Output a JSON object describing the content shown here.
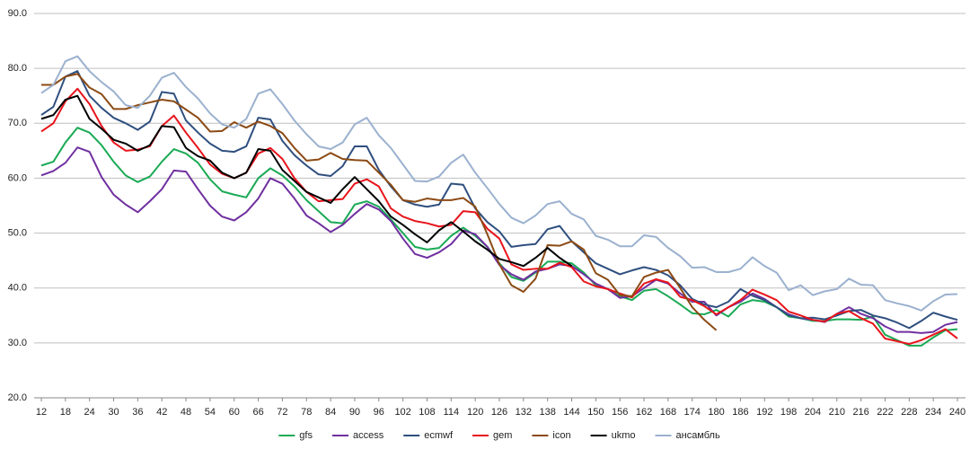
{
  "chart_data": {
    "type": "line",
    "x": [
      12,
      15,
      18,
      21,
      24,
      27,
      30,
      33,
      36,
      39,
      42,
      45,
      48,
      51,
      54,
      57,
      60,
      63,
      66,
      69,
      72,
      75,
      78,
      81,
      84,
      87,
      90,
      93,
      96,
      99,
      102,
      105,
      108,
      111,
      114,
      117,
      120,
      123,
      126,
      129,
      132,
      135,
      138,
      141,
      144,
      147,
      150,
      153,
      156,
      159,
      162,
      165,
      168,
      171,
      174,
      177,
      180,
      183,
      186,
      189,
      192,
      195,
      198,
      201,
      204,
      207,
      210,
      213,
      216,
      219,
      222,
      225,
      228,
      231,
      234,
      237,
      240
    ],
    "xlim": [
      12,
      240
    ],
    "xticks": [
      12,
      18,
      24,
      30,
      36,
      42,
      48,
      54,
      60,
      66,
      72,
      78,
      84,
      90,
      96,
      102,
      108,
      114,
      120,
      126,
      132,
      138,
      144,
      150,
      156,
      162,
      168,
      174,
      180,
      186,
      192,
      198,
      204,
      210,
      216,
      222,
      228,
      234,
      240
    ],
    "ylim": [
      20,
      90
    ],
    "yticks": [
      {
        "value": 20,
        "label": "20.0"
      },
      {
        "value": 30,
        "label": "30.0"
      },
      {
        "value": 40,
        "label": "40.0"
      },
      {
        "value": 50,
        "label": "50.0"
      },
      {
        "value": 60,
        "label": "60.0"
      },
      {
        "value": 70,
        "label": "70.0"
      },
      {
        "value": 80,
        "label": "80.0"
      },
      {
        "value": 90,
        "label": "90.0"
      }
    ],
    "grid": true,
    "legend": "bottom",
    "series": [
      {
        "name": "gfs",
        "color": "#1aaa55",
        "values": [
          62.3,
          63,
          66.5,
          69.2,
          68.3,
          66,
          63,
          60.5,
          59.3,
          60.3,
          63,
          65.3,
          64.5,
          62.8,
          59.8,
          57.6,
          57,
          56.5,
          60,
          61.8,
          60.5,
          58.5,
          56,
          54,
          52,
          51.8,
          55.2,
          55.8,
          54.8,
          52.5,
          50,
          47.5,
          47,
          47.3,
          49.5,
          51,
          49.5,
          47.5,
          44.5,
          42,
          41.3,
          42.8,
          44.8,
          44.8,
          44.5,
          42.8,
          40.5,
          39.8,
          38.5,
          37.8,
          39.5,
          39.8,
          38.5,
          37,
          35.4,
          35.2,
          36,
          34.8,
          37,
          37.8,
          37.5,
          36.5,
          34.8,
          34.5,
          34,
          34,
          34.3,
          34.3,
          34.2,
          34.8,
          31.5,
          30.5,
          29.5,
          29.5,
          31,
          32.3,
          32.5
        ]
      },
      {
        "name": "access",
        "color": "#7030a0",
        "values": [
          60.5,
          61.3,
          62.8,
          65.6,
          64.8,
          60.2,
          57,
          55.2,
          53.8,
          55.8,
          58,
          61.4,
          61.2,
          58,
          55,
          53,
          52.3,
          53.8,
          56.3,
          60,
          59,
          56.3,
          53.2,
          51.8,
          50.2,
          51.5,
          53.5,
          55.3,
          54.3,
          52.2,
          49,
          46.2,
          45.5,
          46.5,
          48,
          50.5,
          49.8,
          47.5,
          44.2,
          42.5,
          41.5,
          43,
          43.5,
          44.3,
          44,
          42.5,
          40.8,
          39.8,
          38.2,
          38.5,
          40,
          41.5,
          40.8,
          39,
          37.5,
          37.5,
          35,
          36.5,
          37.5,
          39,
          38,
          36.5,
          35.2,
          34.5,
          34.2,
          33.8,
          35.3,
          36.5,
          35.3,
          34.5,
          33,
          32,
          32,
          31.8,
          32,
          33.3,
          33.8
        ]
      },
      {
        "name": "ecmwf",
        "color": "#2f4f7f",
        "values": [
          71.5,
          73,
          78.5,
          79.5,
          75,
          72.8,
          71,
          70,
          68.8,
          70.3,
          75.7,
          75.4,
          70.5,
          68.3,
          66.3,
          65,
          64.8,
          65.8,
          71,
          70.7,
          66.8,
          64.2,
          62.3,
          60.7,
          60.4,
          62.2,
          65.8,
          65.8,
          61.5,
          58.5,
          56,
          55.2,
          54.8,
          55.2,
          59,
          58.8,
          54.5,
          52,
          50.3,
          47.5,
          47.8,
          48,
          50.7,
          51.3,
          48.5,
          46.5,
          44.5,
          43.5,
          42.5,
          43.2,
          43.8,
          43.3,
          42.3,
          40.5,
          38,
          37,
          36.5,
          37.5,
          39.8,
          38.6,
          37.8,
          36.5,
          35,
          34.5,
          34.6,
          34.3,
          35,
          35.8,
          36,
          35,
          34.5,
          33.7,
          32.7,
          34,
          35.5,
          34.8,
          34.2
        ]
      },
      {
        "name": "gem",
        "color": "#e8141b",
        "values": [
          68.5,
          70,
          74,
          76.3,
          73.5,
          69.5,
          66.5,
          65,
          65.2,
          65.8,
          69.5,
          71.4,
          68.3,
          65.5,
          62.5,
          60.8,
          60,
          61,
          64.5,
          65.5,
          63.5,
          60,
          57.5,
          55.8,
          56,
          56.2,
          59,
          59.8,
          58.5,
          54.5,
          53,
          52.2,
          51.8,
          51.2,
          51.5,
          54,
          53.8,
          50.8,
          49,
          44.3,
          43.3,
          43.5,
          43.5,
          44.6,
          43.8,
          41.2,
          40.3,
          39.8,
          39,
          38.3,
          40.8,
          41.6,
          41,
          38.4,
          37.8,
          36.7,
          35.2,
          36.5,
          37.8,
          39.7,
          38.8,
          37.8,
          35.7,
          35,
          34.2,
          33.9,
          35.3,
          35.8,
          34.5,
          33.5,
          30.8,
          30.3,
          29.8,
          30.5,
          31.5,
          32.5,
          30.8
        ]
      },
      {
        "name": "icon",
        "color": "#8b4a14",
        "values": [
          77,
          77,
          78.5,
          79,
          76.5,
          75.3,
          72.6,
          72.6,
          73.3,
          73.8,
          74.3,
          74,
          72.5,
          71,
          68.5,
          68.6,
          70.2,
          69.2,
          70.3,
          69.5,
          68.2,
          65.5,
          63.2,
          63.4,
          64.6,
          63.5,
          63.3,
          63.2,
          61,
          58.8,
          56,
          55.7,
          56.3,
          56,
          56,
          56.4,
          54.8,
          49.8,
          44.3,
          40.5,
          39.3,
          41.7,
          47.8,
          47.7,
          48.5,
          47,
          42.7,
          41.5,
          38.7,
          38.5,
          42,
          42.8,
          43.3,
          40,
          36.5,
          34.2,
          32.3,
          null,
          null,
          null,
          null,
          null,
          null,
          null,
          null,
          null,
          null,
          null,
          null,
          null,
          null,
          null,
          null,
          null,
          null,
          null,
          null
        ]
      },
      {
        "name": "ukmo",
        "color": "#000000",
        "values": [
          70.8,
          71.5,
          74.3,
          75,
          70.8,
          69,
          67,
          66.3,
          65,
          66,
          69.5,
          69.3,
          65.5,
          64,
          63.2,
          61,
          60,
          61,
          65.3,
          65,
          61.5,
          59.5,
          57.5,
          56.5,
          55.5,
          58,
          60.2,
          58,
          55.8,
          53,
          51.5,
          49.8,
          48.3,
          50.5,
          52,
          50.3,
          48.5,
          47,
          45.3,
          44.7,
          44,
          45.5,
          47.3,
          45.5,
          44,
          null,
          null,
          null,
          null,
          null,
          null,
          null,
          null,
          null,
          null,
          null,
          null,
          null,
          null,
          null,
          null,
          null,
          null,
          null,
          null,
          null,
          null,
          null,
          null,
          null,
          null,
          null,
          null,
          null,
          null,
          null,
          null
        ]
      },
      {
        "name": "ансамбль",
        "color": "#9bb1cf",
        "values": [
          75.5,
          77,
          81.3,
          82.2,
          79.5,
          77.5,
          75.8,
          73.3,
          72.8,
          75,
          78.3,
          79.2,
          76.6,
          74.5,
          71.8,
          69.8,
          69.2,
          70.8,
          75.4,
          76.2,
          73.5,
          70.5,
          68,
          65.8,
          65.3,
          66.5,
          69.8,
          71,
          67.8,
          65.5,
          62.5,
          59.5,
          59.4,
          60.3,
          62.8,
          64.3,
          61,
          58.2,
          55.3,
          52.8,
          51.8,
          53.2,
          55.3,
          55.8,
          53.5,
          52.5,
          49.5,
          48.8,
          47.6,
          47.6,
          49.6,
          49.3,
          47.3,
          45.8,
          43.7,
          43.8,
          42.9,
          42.9,
          43.5,
          45.6,
          44,
          42.8,
          39.6,
          40.5,
          38.7,
          39.4,
          39.8,
          41.7,
          40.6,
          40.5,
          37.8,
          37.2,
          36.7,
          35.9,
          37.6,
          38.8,
          38.9
        ]
      }
    ]
  }
}
